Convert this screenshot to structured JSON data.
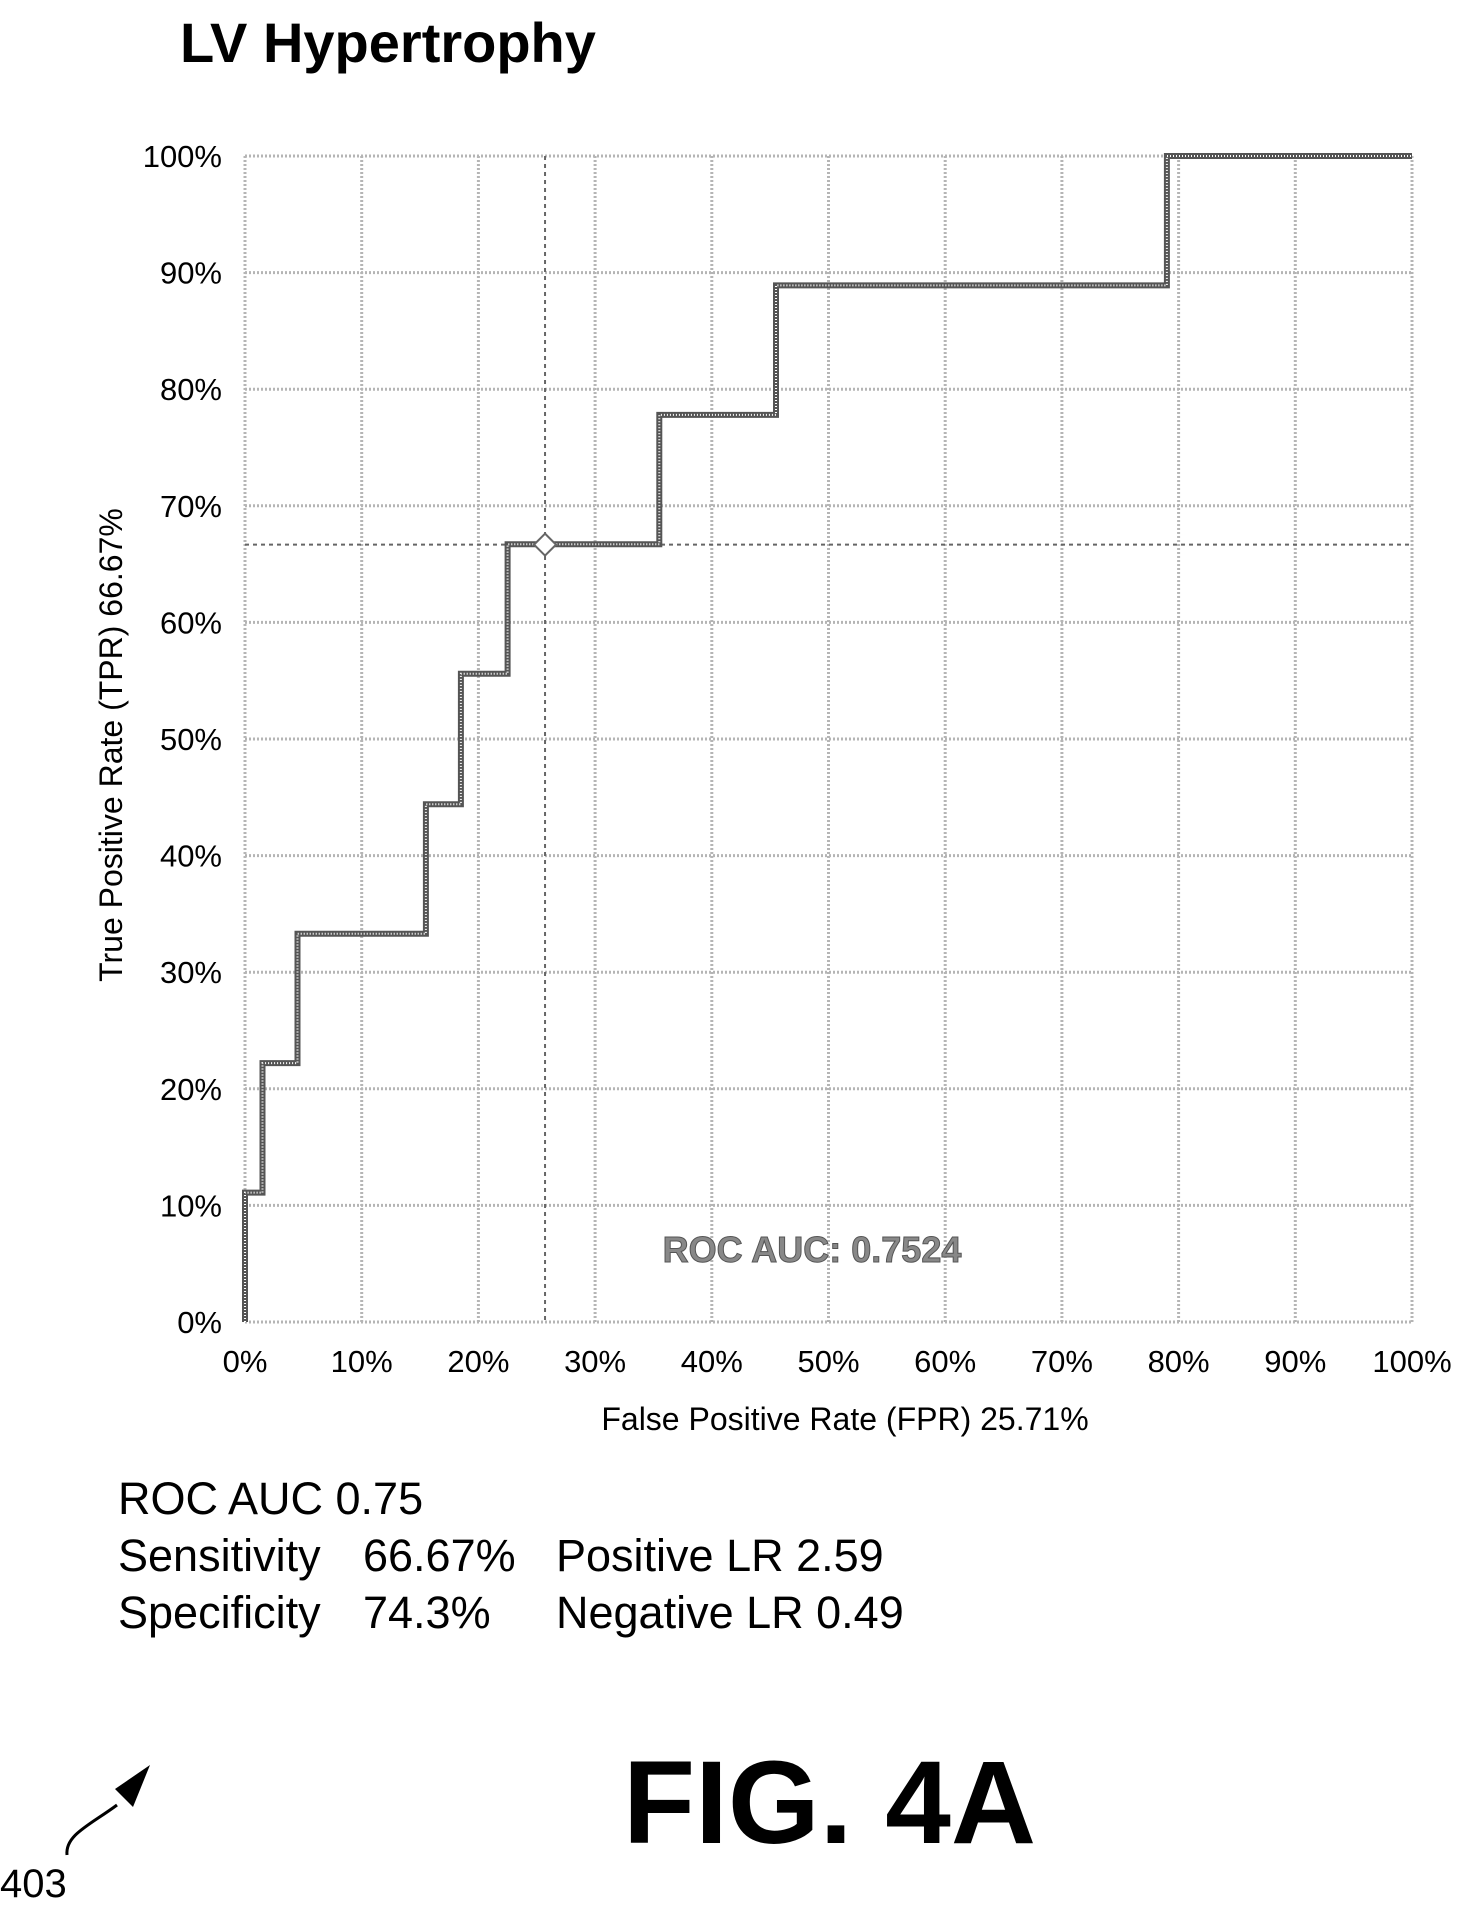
{
  "figure": {
    "label": "FIG. 4A",
    "reference_number": "403"
  },
  "chart_data": {
    "type": "line",
    "title": "LV Hypertrophy",
    "xlabel": "False Positive Rate (FPR) 25.71%",
    "ylabel": "True Positive Rate (TPR) 66.67%",
    "xlim": [
      0,
      100
    ],
    "ylim": [
      0,
      100
    ],
    "x_ticks": [
      "0%",
      "10%",
      "20%",
      "30%",
      "40%",
      "50%",
      "60%",
      "70%",
      "80%",
      "90%",
      "100%"
    ],
    "y_ticks": [
      "0%",
      "10%",
      "20%",
      "30%",
      "40%",
      "50%",
      "60%",
      "70%",
      "80%",
      "90%",
      "100%"
    ],
    "grid": true,
    "series": [
      {
        "x": [
          0,
          0,
          1.5,
          1.5,
          4.5,
          4.5,
          15.5,
          15.5,
          18.5,
          18.5,
          22.5,
          22.5,
          35.5,
          35.5,
          45.5,
          45.5,
          79,
          79,
          100
        ],
        "y": [
          0,
          11.1,
          11.1,
          22.2,
          22.2,
          33.3,
          33.3,
          44.4,
          44.4,
          55.6,
          55.6,
          66.7,
          66.7,
          77.8,
          77.8,
          88.9,
          88.9,
          100,
          100
        ]
      }
    ],
    "operating_point": {
      "x": 25.71,
      "y": 66.67
    },
    "annotation": "ROC AUC: 0.7524"
  },
  "stats": {
    "auc": "ROC AUC 0.75",
    "sensitivity_label": "Sensitivity",
    "sensitivity_value": "66.67%",
    "positive_lr": "Positive LR 2.59",
    "specificity_label": "Specificity",
    "specificity_value": "74.3%",
    "negative_lr": "Negative LR 0.49"
  },
  "colors": {
    "curve": "#555555",
    "grid": "#b5b5b5",
    "text": "#000000"
  }
}
